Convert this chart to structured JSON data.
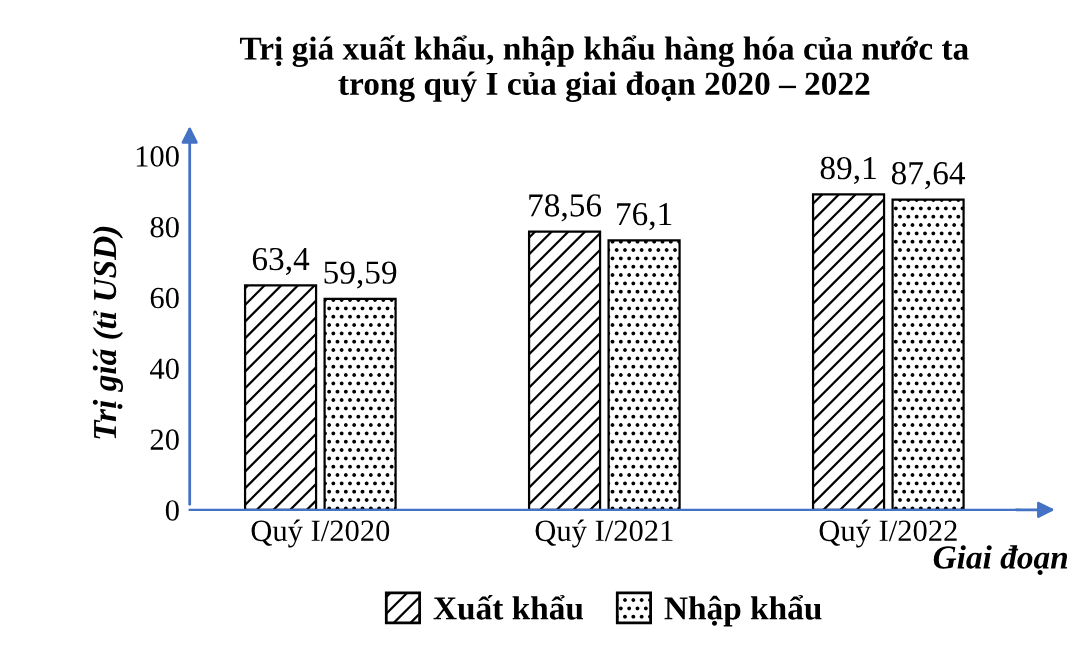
{
  "chart_data": {
    "type": "bar",
    "title": "Trị giá xuất khẩu, nhập khẩu hàng hóa của nước ta\ntrong quý I của giai đoạn 2020 – 2022",
    "xlabel": "Giai đoạn",
    "ylabel": "Trị giá (tỉ USD)",
    "categories": [
      "Quý I/2020",
      "Quý I/2021",
      "Quý I/2022"
    ],
    "series": [
      {
        "name": "Xuất khẩu",
        "color": "#000000",
        "values": [
          63.4,
          78.56,
          89.1
        ],
        "value_labels": [
          "63,4",
          "78,56",
          "89,1"
        ]
      },
      {
        "name": "Nhập khẩu",
        "color": "#000000",
        "values": [
          59.59,
          76.1,
          87.64
        ],
        "value_labels": [
          "59,59",
          "76,1",
          "87,64"
        ]
      }
    ],
    "ylim": [
      0,
      100
    ],
    "yticks": [
      0,
      20,
      40,
      60,
      80,
      100
    ],
    "grid": false,
    "legend": "bottom"
  }
}
